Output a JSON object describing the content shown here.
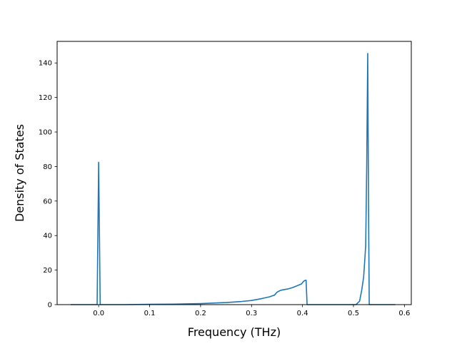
{
  "chart_data": {
    "type": "line",
    "title": "",
    "xlabel": "Frequency (THz)",
    "ylabel": "Density of States",
    "xlim": [
      -0.0815,
      0.6135
    ],
    "ylim": [
      0,
      152.5
    ],
    "grid": false,
    "x_ticks": [
      {
        "value": 0.0,
        "label": "0.0"
      },
      {
        "value": 0.1,
        "label": "0.1"
      },
      {
        "value": 0.2,
        "label": "0.2"
      },
      {
        "value": 0.3,
        "label": "0.3"
      },
      {
        "value": 0.4,
        "label": "0.4"
      },
      {
        "value": 0.5,
        "label": "0.5"
      },
      {
        "value": 0.6,
        "label": "0.6"
      }
    ],
    "y_ticks": [
      {
        "value": 0,
        "label": "0"
      },
      {
        "value": 20,
        "label": "20"
      },
      {
        "value": 40,
        "label": "40"
      },
      {
        "value": 60,
        "label": "60"
      },
      {
        "value": 80,
        "label": "80"
      },
      {
        "value": 100,
        "label": "100"
      },
      {
        "value": 120,
        "label": "120"
      },
      {
        "value": 140,
        "label": "140"
      }
    ],
    "series": [
      {
        "color": "#1f77b4",
        "x": [
          -0.055,
          -0.003,
          0.0,
          0.003,
          0.006,
          0.05,
          0.1,
          0.15,
          0.2,
          0.25,
          0.28,
          0.3,
          0.32,
          0.335,
          0.345,
          0.35,
          0.355,
          0.36,
          0.37,
          0.38,
          0.39,
          0.398,
          0.402,
          0.405,
          0.407,
          0.409,
          0.42,
          0.45,
          0.48,
          0.505,
          0.512,
          0.516,
          0.52,
          0.524,
          0.526,
          0.528,
          0.5295,
          0.531,
          0.533,
          0.55,
          0.582
        ],
        "y": [
          0,
          0,
          82.5,
          0,
          0,
          0,
          0.2,
          0.3,
          0.6,
          1.2,
          1.8,
          2.4,
          3.5,
          4.5,
          5.5,
          7.2,
          8.0,
          8.5,
          9.0,
          9.8,
          11.0,
          12.0,
          13.5,
          14.0,
          14.2,
          0,
          0,
          0,
          0,
          0,
          2,
          8,
          16,
          34,
          80,
          145.5,
          60,
          0,
          0,
          0,
          0
        ]
      }
    ]
  }
}
